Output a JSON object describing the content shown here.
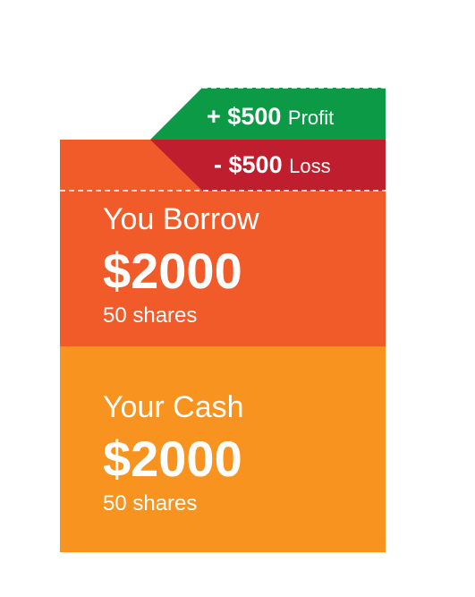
{
  "profit_badge": {
    "sign": "+",
    "amount": "$500",
    "label": "Profit",
    "color": "#0c9a46"
  },
  "loss_badge": {
    "sign": "-",
    "amount": "$500",
    "label": "Loss",
    "color": "#be1e2d"
  },
  "borrow_block": {
    "title": "You Borrow",
    "amount": "$2000",
    "shares": "50 shares",
    "color": "#f15a29"
  },
  "cash_block": {
    "title": "Your Cash",
    "amount": "$2000",
    "shares": "50 shares",
    "color": "#f7931e"
  }
}
